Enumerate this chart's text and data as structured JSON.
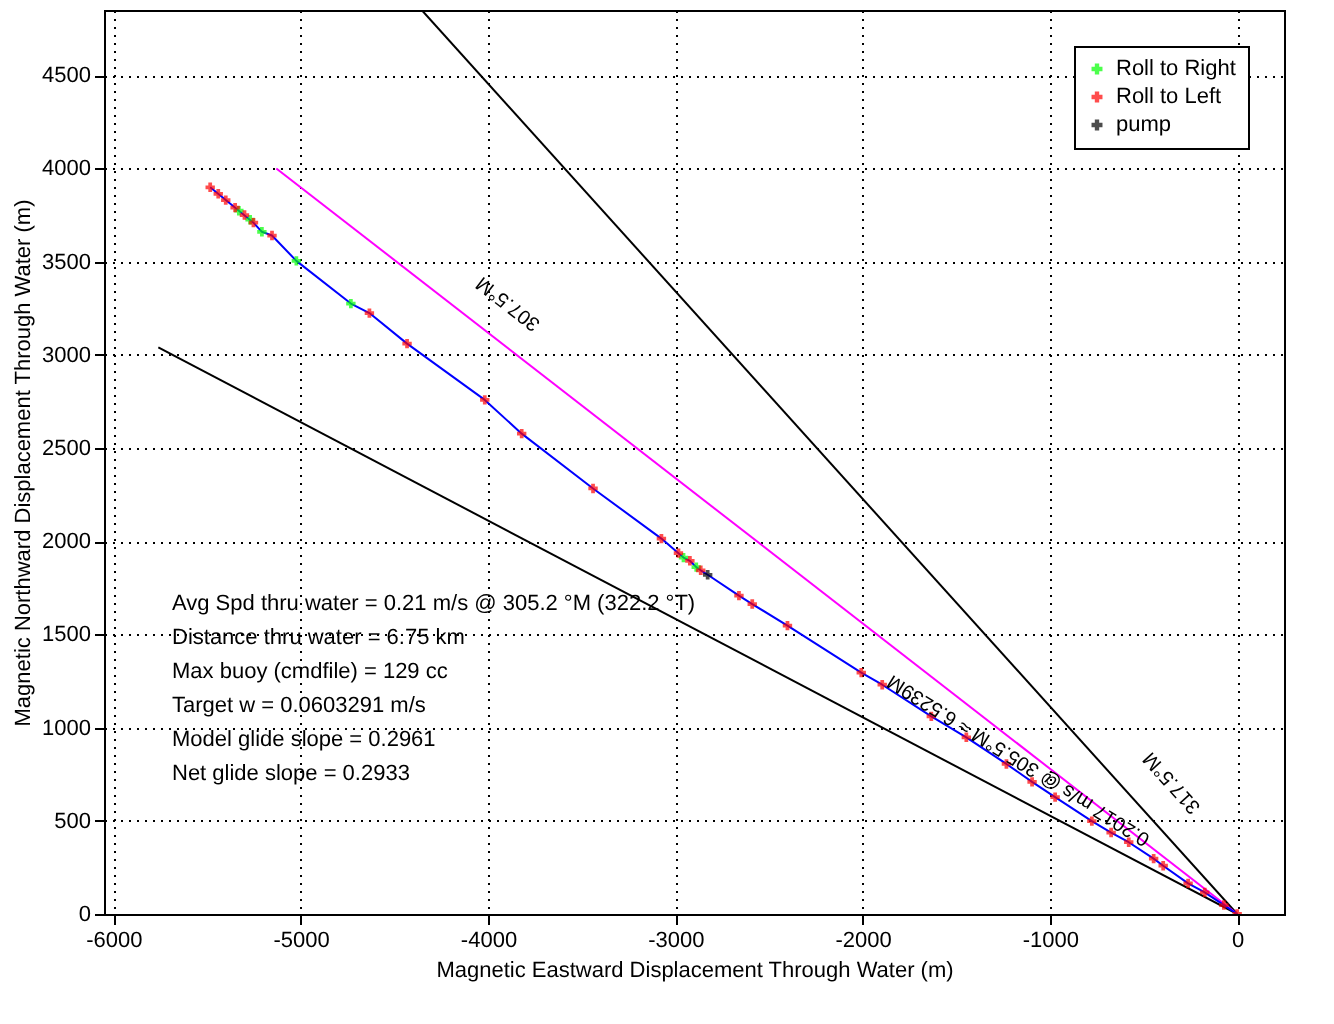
{
  "chart_data": {
    "type": "scatter",
    "xlabel": "Magnetic Eastward Displacement Through Water (m)",
    "ylabel": "Magnetic Northward Displacement Through Water (m)",
    "xlim": [
      -6050,
      250
    ],
    "ylim": [
      0,
      4850
    ],
    "xticks": [
      -6000,
      -5000,
      -4000,
      -3000,
      -2000,
      -1000,
      0
    ],
    "yticks": [
      0,
      500,
      1000,
      1500,
      2000,
      2500,
      3000,
      3500,
      4000,
      4500
    ],
    "grid": true,
    "legend": "top right",
    "marker": "cross",
    "series": [
      {
        "type": "line",
        "marker": "none",
        "line_style": "solid",
        "color": "#000000",
        "x": [
          0,
          -4354
        ],
        "values": [
          0,
          4850
        ]
      },
      {
        "type": "line",
        "marker": "none",
        "line_style": "solid",
        "color": "#000000",
        "x": [
          0,
          -5760
        ],
        "values": [
          0,
          3040
        ]
      },
      {
        "type": "line",
        "marker": "none",
        "line_style": "solid",
        "color": "#ff00ff",
        "x": [
          0,
          -5130
        ],
        "values": [
          0,
          4000
        ]
      },
      {
        "type": "line",
        "marker": "none",
        "line_style": "solid",
        "color": "#0000ff",
        "x": [
          0,
          -71,
          -173,
          -262,
          -395,
          -446,
          -579,
          -673,
          -776,
          -972,
          -1095,
          -1232,
          -1446,
          -1633,
          -1895,
          -2007,
          -2401,
          -2589,
          -2660,
          -2827,
          -2864,
          -2888,
          -2922,
          -2956,
          -2983,
          -3074,
          -3439,
          -3820,
          -4017,
          -4432,
          -4633,
          -4732,
          -5023,
          -5153,
          -5207,
          -5252,
          -5483
        ],
        "values": [
          0,
          48,
          116,
          164,
          259,
          297,
          385,
          437,
          498,
          627,
          709,
          805,
          948,
          1060,
          1230,
          1295,
          1547,
          1663,
          1708,
          1820,
          1844,
          1861,
          1895,
          1912,
          1936,
          2014,
          2283,
          2577,
          2758,
          3060,
          3224,
          3275,
          3504,
          3640,
          3660,
          3709,
          3899
        ]
      },
      {
        "name": "Roll to Right",
        "color": "#00ff00",
        "x": [
          -2956,
          -2888,
          -4732,
          -5023,
          -5207,
          -5270,
          -5330
        ],
        "values": [
          1912,
          1861,
          3275,
          3504,
          3660,
          3725,
          3773
        ]
      },
      {
        "name": "Roll to Left",
        "color": "#ff0000",
        "x": [
          0,
          -71,
          -173,
          -262,
          -395,
          -446,
          -579,
          -673,
          -776,
          -972,
          -1095,
          -1232,
          -1446,
          -1633,
          -1895,
          -2007,
          -2401,
          -2589,
          -2660,
          -2864,
          -2922,
          -2983,
          -3074,
          -3439,
          -3820,
          -4017,
          -4432,
          -4633,
          -5153,
          -5252,
          -5300,
          -5350,
          -5400,
          -5440,
          -5483
        ],
        "values": [
          0,
          48,
          116,
          164,
          259,
          297,
          385,
          437,
          498,
          627,
          709,
          805,
          948,
          1060,
          1230,
          1295,
          1547,
          1663,
          1708,
          1844,
          1895,
          1936,
          2014,
          2283,
          2577,
          2758,
          3060,
          3224,
          3640,
          3709,
          3750,
          3790,
          3830,
          3864,
          3899
        ]
      },
      {
        "name": "pump",
        "color": "#000000",
        "x": [
          -2827
        ],
        "values": [
          1820
        ]
      }
    ],
    "annotations": [
      "307.5°M",
      "317.5°M",
      "0.2017 m/s @ 305.5°M ≈ 6.5239M",
      "Avg Spd thru water =  0.21 m/s @ 305.2 °M (322.2 °T)",
      "Distance thru water =  6.75 km",
      "Max buoy (cmdfile) = 129 cc",
      "Target w  = 0.0603291 m/s",
      "Model glide slope   = 0.2961",
      "Net glide slope      = 0.2933"
    ]
  }
}
